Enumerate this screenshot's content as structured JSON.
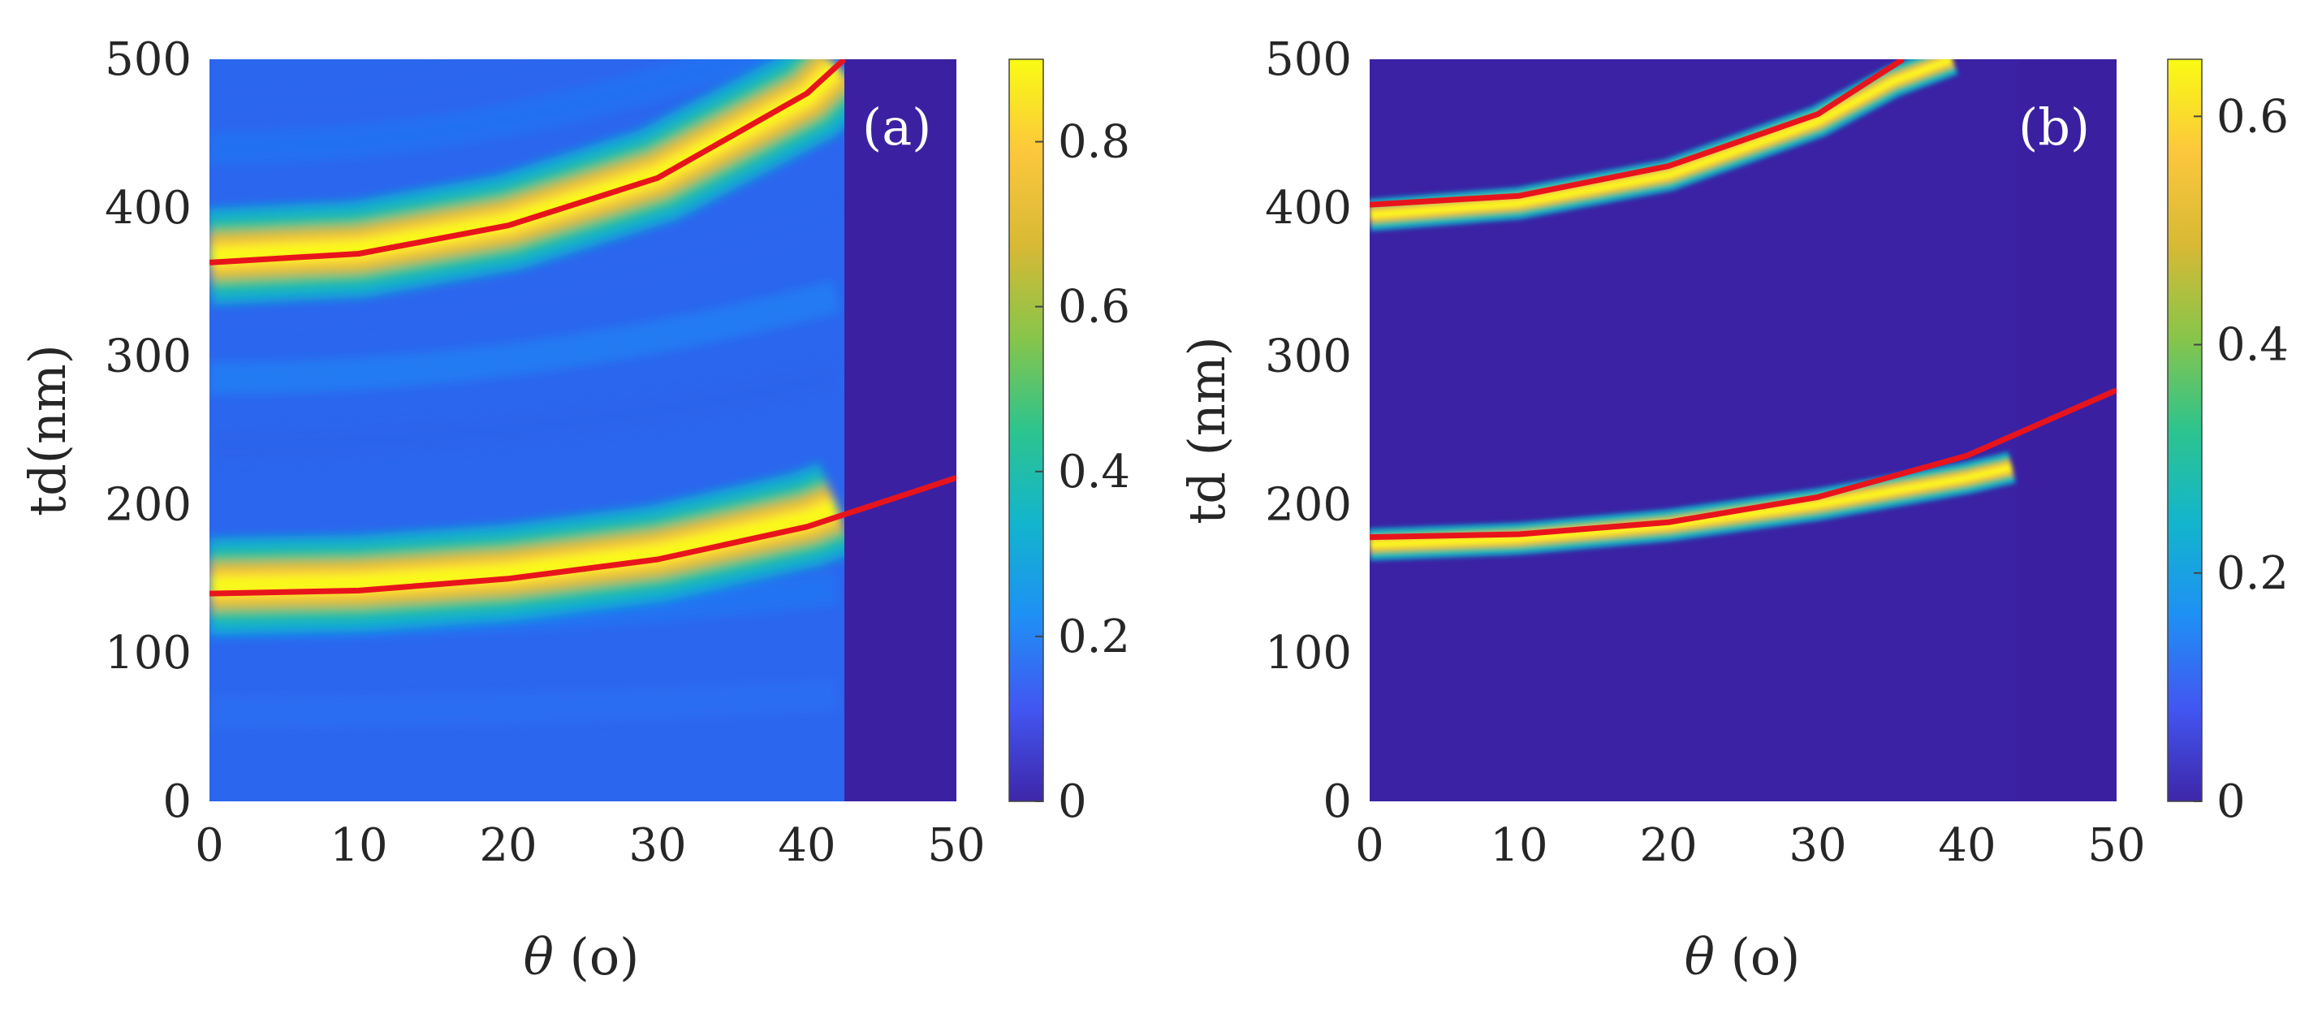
{
  "chart_data": [
    {
      "type": "heatmap",
      "panel_label": "(a)",
      "xlabel_symbol": "θ",
      "xlabel_unit": " (o)",
      "ylabel": "td(nm)",
      "xlim": [
        0,
        50
      ],
      "ylim": [
        0,
        500
      ],
      "xticks": [
        "0",
        "10",
        "20",
        "30",
        "40",
        "50"
      ],
      "yticks": [
        "0",
        "100",
        "200",
        "300",
        "400",
        "500"
      ],
      "colorbar": {
        "min": 0,
        "max": 0.9,
        "ticks": [
          "0",
          "0.2",
          "0.4",
          "0.6",
          "0.8"
        ]
      },
      "cutoff_angle": 42.5,
      "bands": [
        {
          "name": "lower resonance band",
          "center": [
            [
              0,
              145
            ],
            [
              10,
              147
            ],
            [
              20,
              154
            ],
            [
              30,
              167
            ],
            [
              40,
              190
            ],
            [
              42.5,
              200
            ]
          ],
          "peak": 0.88
        },
        {
          "name": "upper resonance band",
          "center": [
            [
              0,
              367
            ],
            [
              10,
              372
            ],
            [
              20,
              390
            ],
            [
              30,
              422
            ],
            [
              40,
              475
            ],
            [
              42.5,
              500
            ]
          ],
          "peak": 0.88
        }
      ],
      "series": [
        {
          "name": "lower mode curve",
          "x": [
            0,
            10,
            20,
            30,
            40,
            50
          ],
          "y": [
            140,
            142,
            150,
            163,
            185,
            218
          ]
        },
        {
          "name": "upper mode curve",
          "x": [
            0,
            10,
            20,
            30,
            40,
            42.5
          ],
          "y": [
            363,
            369,
            388,
            420,
            477,
            500
          ]
        }
      ]
    },
    {
      "type": "heatmap",
      "panel_label": "(b)",
      "xlabel_symbol": "θ",
      "xlabel_unit": " (o)",
      "ylabel": "td (nm)",
      "xlim": [
        0,
        50
      ],
      "ylim": [
        0,
        500
      ],
      "xticks": [
        "0",
        "10",
        "20",
        "30",
        "40",
        "50"
      ],
      "yticks": [
        "0",
        "100",
        "200",
        "300",
        "400",
        "500"
      ],
      "colorbar": {
        "min": 0,
        "max": 0.65,
        "ticks": [
          "0",
          "0.2",
          "0.4",
          "0.6"
        ]
      },
      "cutoff_angle": 43.5,
      "bands": [
        {
          "name": "lower resonance band",
          "center": [
            [
              0,
              173
            ],
            [
              10,
              177
            ],
            [
              20,
              186
            ],
            [
              30,
              200
            ],
            [
              40,
              218
            ],
            [
              43,
              225
            ]
          ],
          "peak": 0.62
        },
        {
          "name": "upper resonance band",
          "center": [
            [
              0,
              395
            ],
            [
              10,
              403
            ],
            [
              20,
              422
            ],
            [
              30,
              458
            ],
            [
              35,
              485
            ],
            [
              39,
              500
            ]
          ],
          "peak": 0.62
        }
      ],
      "series": [
        {
          "name": "lower mode curve",
          "x": [
            0,
            10,
            20,
            30,
            40,
            50
          ],
          "y": [
            178,
            180,
            188,
            205,
            233,
            277
          ]
        },
        {
          "name": "upper mode curve",
          "x": [
            0,
            10,
            20,
            30,
            35.7
          ],
          "y": [
            402,
            408,
            428,
            463,
            500
          ]
        }
      ]
    }
  ],
  "colors": {
    "curve": "#e8141c",
    "background_low": "#3b1fa0",
    "colormap": [
      "#3e26a8",
      "#4256f2",
      "#1f90f4",
      "#12b5cd",
      "#2dc48e",
      "#88c54a",
      "#d8b935",
      "#fcc73c",
      "#f9fb14"
    ]
  }
}
